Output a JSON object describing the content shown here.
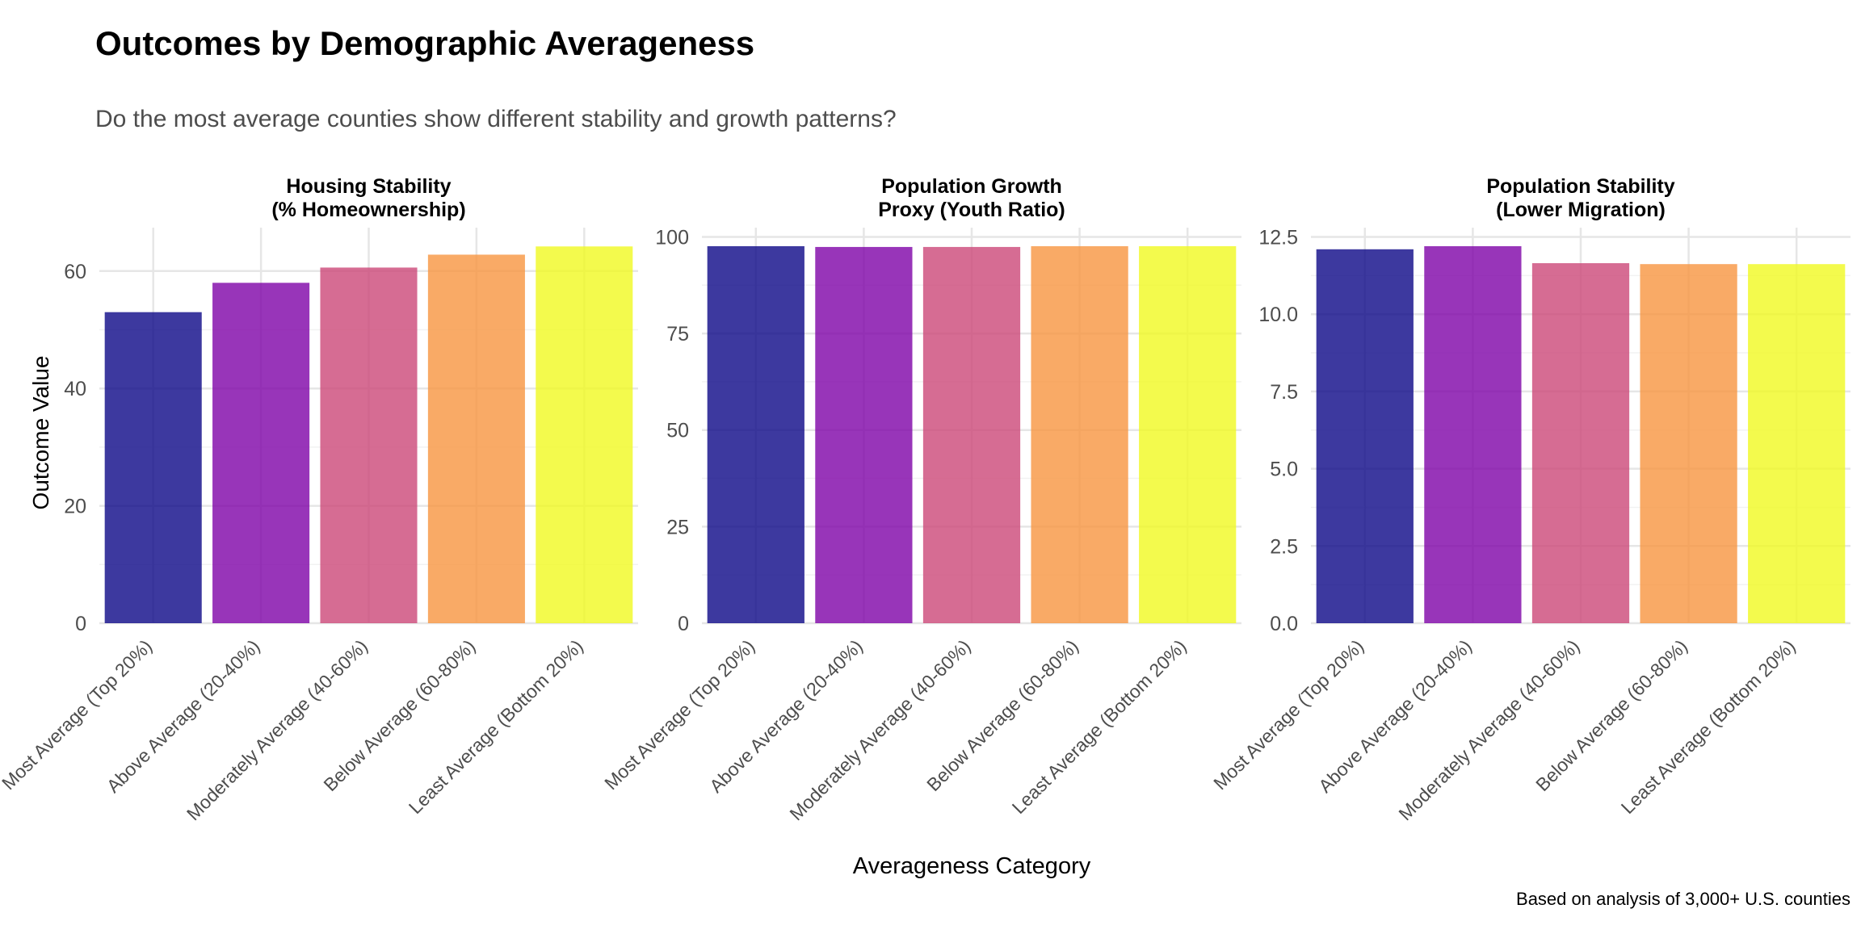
{
  "title": "Outcomes by Demographic Averageness",
  "subtitle": "Do the most average counties show different stability and growth patterns?",
  "caption": "Based on analysis of 3,000+ U.S. counties",
  "palette": [
    "#0D0887",
    "#7E03A8",
    "#CC4778",
    "#F89540",
    "#F0F921"
  ],
  "bar_opacity": 0.8,
  "chart_data": {
    "type": "bar",
    "xlabel": "Averageness Category",
    "ylabel": "Outcome Value",
    "categories": [
      "Most Average (Top 20%)",
      "Above Average (20-40%)",
      "Moderately Average (40-60%)",
      "Below Average (60-80%)",
      "Least Average (Bottom 20%)"
    ],
    "grid": true,
    "legend": "none",
    "panels": [
      {
        "title_lines": [
          "Housing Stability",
          "(% Homeownership)"
        ],
        "values": [
          53.0,
          58.0,
          60.6,
          62.8,
          64.2
        ],
        "ylim": [
          0,
          67.4
        ],
        "ticks": [
          0,
          20,
          40,
          60
        ],
        "tick_labels": [
          "0",
          "20",
          "40",
          "60"
        ]
      },
      {
        "title_lines": [
          "Population Growth",
          "Proxy (Youth Ratio)"
        ],
        "values": [
          97.6,
          97.4,
          97.4,
          97.6,
          97.6
        ],
        "ylim": [
          0,
          102.4
        ],
        "ticks": [
          0,
          25,
          50,
          75,
          100
        ],
        "tick_labels": [
          "0",
          "25",
          "50",
          "75",
          "100"
        ]
      },
      {
        "title_lines": [
          "Population Stability",
          "(Lower Migration)"
        ],
        "values": [
          12.1,
          12.2,
          11.65,
          11.62,
          11.62
        ],
        "ylim": [
          0,
          12.8
        ],
        "ticks": [
          0,
          2.5,
          5.0,
          7.5,
          10.0,
          12.5
        ],
        "tick_labels": [
          "0.0",
          "2.5",
          "5.0",
          "7.5",
          "10.0",
          "12.5"
        ]
      }
    ]
  }
}
